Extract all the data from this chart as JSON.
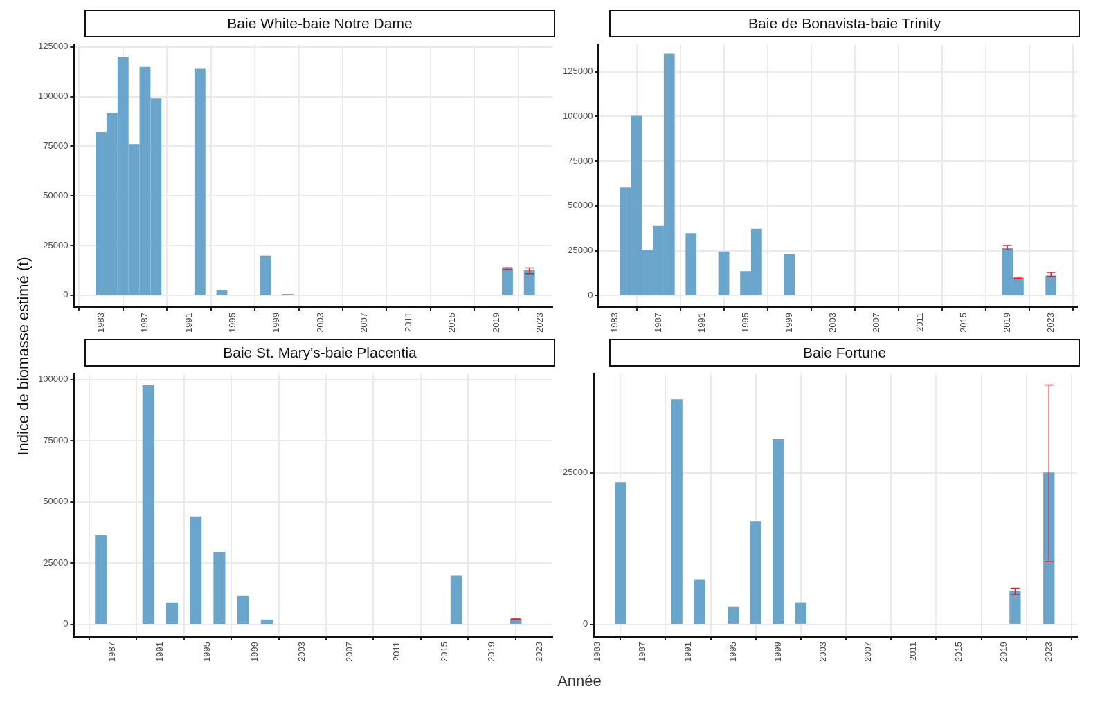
{
  "chart_data": [
    {
      "type": "bar",
      "title": "Baie White-baie Notre Dame",
      "ylabel": "Indice de biomasse estimé (t)",
      "color": "#6aa5cc",
      "grid": true,
      "x": [
        1983,
        1984,
        1985,
        1986,
        1987,
        1988,
        1992,
        1994,
        1998,
        2000,
        2020,
        2022
      ],
      "values": [
        82000,
        91600,
        119600,
        76000,
        114800,
        98900,
        113800,
        2400,
        19800,
        500,
        13400,
        12400
      ],
      "errors": [
        null,
        null,
        null,
        null,
        null,
        null,
        null,
        null,
        null,
        null,
        [
          12900,
          13800
        ],
        [
          10800,
          13700
        ]
      ],
      "xlim": [
        1980.5,
        2024.1
      ],
      "xticks": [
        1983,
        1987,
        1991,
        1995,
        1999,
        2003,
        2007,
        2011,
        2015,
        2019,
        2023
      ],
      "ylim": [
        -6000,
        126000
      ],
      "yticks": [
        0,
        25000,
        50000,
        75000,
        100000,
        125000
      ]
    },
    {
      "type": "bar",
      "title": "Baie de Bonavista-baie Trinity",
      "color": "#6aa5cc",
      "grid": true,
      "x": [
        1984,
        1985,
        1986,
        1987,
        1988,
        1990,
        1993,
        1995,
        1996,
        1999,
        2019,
        2020,
        2023
      ],
      "values": [
        60100,
        100200,
        25500,
        38700,
        135000,
        34600,
        24400,
        13400,
        37100,
        22800,
        26300,
        9800,
        11000
      ],
      "errors": [
        null,
        null,
        null,
        null,
        null,
        null,
        null,
        null,
        null,
        null,
        [
          25500,
          27900
        ],
        [
          9500,
          10200
        ],
        [
          10600,
          12800
        ]
      ],
      "xlim": [
        1981.5,
        2025.4
      ],
      "xticks": [
        1983,
        1987,
        1991,
        1995,
        1999,
        2003,
        2007,
        2011,
        2015,
        2019,
        2023
      ],
      "ylim": [
        -6500,
        140000
      ],
      "yticks": [
        0,
        25000,
        50000,
        75000,
        100000,
        125000
      ]
    },
    {
      "type": "bar",
      "title": "Baie St. Mary's-baie Placentia",
      "xlabel": "Année",
      "color": "#6aa5cc",
      "grid": true,
      "x": [
        1986,
        1990,
        1992,
        1994,
        1996,
        1998,
        2000,
        2016,
        2021
      ],
      "values": [
        36300,
        97500,
        8700,
        44000,
        29500,
        11500,
        1900,
        19800,
        2200
      ],
      "errors": [
        null,
        null,
        null,
        null,
        null,
        null,
        null,
        null,
        [
          2000,
          2500
        ]
      ],
      "xlim": [
        1983.7,
        2024.1
      ],
      "xticks": [
        1987,
        1991,
        1995,
        1999,
        2003,
        2007,
        2011,
        2015,
        2019,
        2023
      ],
      "ylim": [
        -4850,
        102200
      ],
      "yticks": [
        0,
        25000,
        50000,
        75000,
        100000
      ]
    },
    {
      "type": "bar",
      "title": "Baie Fortune",
      "color": "#6aa5cc",
      "grid": true,
      "x": [
        1985,
        1990,
        1992,
        1995,
        1997,
        1999,
        2001,
        2020,
        2023
      ],
      "values": [
        23400,
        37100,
        7400,
        2800,
        16900,
        30500,
        3500,
        5500,
        25000
      ],
      "errors": [
        null,
        null,
        null,
        null,
        null,
        null,
        null,
        [
          4850,
          5950
        ],
        [
          10300,
          39500
        ]
      ],
      "xlim": [
        1982.6,
        2025.5
      ],
      "xticks": [
        1983,
        1987,
        1991,
        1995,
        1999,
        2003,
        2007,
        2011,
        2015,
        2019,
        2023
      ],
      "ylim": [
        -2000,
        41300
      ],
      "yticks": [
        0,
        25000
      ]
    }
  ]
}
